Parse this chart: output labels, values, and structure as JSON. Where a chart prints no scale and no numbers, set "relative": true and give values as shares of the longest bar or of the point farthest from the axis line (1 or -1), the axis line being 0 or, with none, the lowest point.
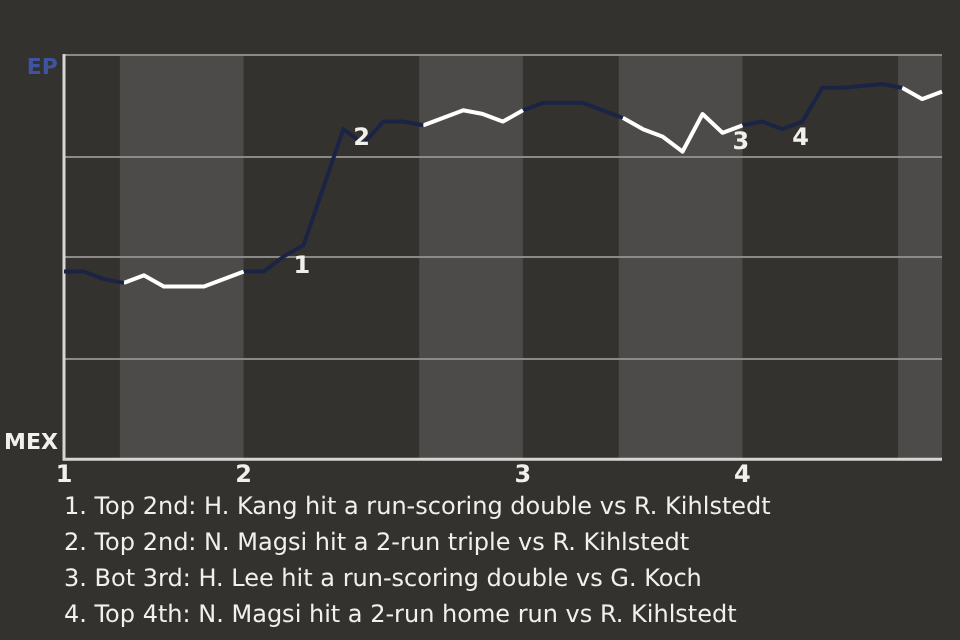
{
  "chart_data": {
    "type": "line",
    "relative": true,
    "categories": [
      "1",
      null,
      null,
      null,
      null,
      null,
      null,
      null,
      null,
      "2",
      null,
      null,
      null,
      null,
      null,
      null,
      null,
      null,
      null,
      null,
      null,
      null,
      null,
      "3",
      null,
      null,
      null,
      null,
      null,
      null,
      null,
      null,
      null,
      null,
      "4",
      null,
      null,
      null,
      null,
      null,
      null,
      null,
      null,
      null,
      null
    ],
    "series": [
      {
        "color": "#1b2444",
        "values": [
          0.5,
          0.5,
          0.48,
          0.47,
          null,
          null,
          null,
          null,
          null,
          null,
          null,
          null,
          null,
          null,
          null,
          null,
          null,
          null,
          null,
          null,
          null,
          null,
          null,
          null,
          null,
          null,
          null,
          null,
          null,
          null,
          null,
          null,
          null,
          null,
          null,
          null,
          null,
          null,
          null,
          null,
          null,
          null,
          null,
          null,
          null
        ]
      },
      {
        "color": "#ffffff",
        "values": [
          null,
          null,
          null,
          0.47,
          0.49,
          0.46,
          null,
          0.46,
          null,
          0.5,
          null,
          null,
          null,
          null,
          null,
          null,
          null,
          null,
          null,
          null,
          null,
          null,
          null,
          null,
          null,
          null,
          null,
          null,
          null,
          null,
          null,
          null,
          null,
          null,
          null,
          null,
          null,
          null,
          null,
          null,
          null,
          null,
          null,
          null,
          null
        ]
      },
      {
        "color": "#1b2444",
        "values": [
          null,
          null,
          null,
          null,
          null,
          null,
          null,
          null,
          null,
          0.5,
          0.5,
          0.54,
          0.57,
          null,
          0.88,
          0.84,
          0.9,
          0.9,
          0.89,
          null,
          null,
          null,
          null,
          null,
          null,
          null,
          null,
          null,
          null,
          null,
          null,
          null,
          null,
          null,
          null,
          null,
          null,
          null,
          null,
          null,
          null,
          null,
          null,
          null,
          null
        ]
      },
      {
        "color": "#ffffff",
        "values": [
          null,
          null,
          null,
          null,
          null,
          null,
          null,
          null,
          null,
          null,
          null,
          null,
          null,
          null,
          null,
          null,
          null,
          null,
          0.89,
          0.91,
          0.93,
          0.92,
          0.9,
          0.93,
          null,
          null,
          null,
          null,
          null,
          null,
          null,
          null,
          null,
          null,
          null,
          null,
          null,
          null,
          null,
          null,
          null,
          null,
          null,
          null,
          null
        ]
      },
      {
        "color": "#1b2444",
        "values": [
          null,
          null,
          null,
          null,
          null,
          null,
          null,
          null,
          null,
          null,
          null,
          null,
          null,
          null,
          null,
          null,
          null,
          null,
          null,
          null,
          null,
          null,
          null,
          0.93,
          0.95,
          null,
          0.95,
          null,
          0.91,
          null,
          null,
          null,
          null,
          null,
          null,
          null,
          null,
          null,
          null,
          null,
          null,
          null,
          null,
          null,
          null
        ]
      },
      {
        "color": "#ffffff",
        "values": [
          null,
          null,
          null,
          null,
          null,
          null,
          null,
          null,
          null,
          null,
          null,
          null,
          null,
          null,
          null,
          null,
          null,
          null,
          null,
          null,
          null,
          null,
          null,
          null,
          null,
          null,
          null,
          null,
          0.91,
          0.88,
          0.86,
          0.82,
          0.92,
          0.87,
          0.89,
          null,
          null,
          null,
          null,
          null,
          null,
          null,
          null,
          null,
          null
        ]
      },
      {
        "color": "#1b2444",
        "values": [
          null,
          null,
          null,
          null,
          null,
          null,
          null,
          null,
          null,
          null,
          null,
          null,
          null,
          null,
          null,
          null,
          null,
          null,
          null,
          null,
          null,
          null,
          null,
          null,
          null,
          null,
          null,
          null,
          null,
          null,
          null,
          null,
          null,
          null,
          0.89,
          0.9,
          0.88,
          0.9,
          0.99,
          0.99,
          null,
          1,
          0.99,
          null,
          null
        ]
      },
      {
        "color": "#ffffff",
        "values": [
          null,
          null,
          null,
          null,
          null,
          null,
          null,
          null,
          null,
          null,
          null,
          null,
          null,
          null,
          null,
          null,
          null,
          null,
          null,
          null,
          null,
          null,
          null,
          null,
          null,
          null,
          null,
          null,
          null,
          null,
          null,
          null,
          null,
          null,
          null,
          null,
          null,
          null,
          null,
          null,
          null,
          null,
          0.99,
          0.96,
          0.98
        ]
      }
    ],
    "grid": "y",
    "marker": "none",
    "annotations": [
      "EP",
      "MEX",
      {
        "text": "1",
        "y": 0.54
      },
      {
        "text": "2",
        "y": 0.88
      },
      {
        "text": "3",
        "y": 0.87
      },
      {
        "text": "4",
        "y": 0.88
      },
      "1. Top 2nd: H. Kang hit a run-scoring double vs R. Kihlstedt",
      "2. Top 2nd: N. Magsi hit a 2-run triple vs R. Kihlstedt",
      "3. Bot 3rd: H. Lee hit a run-scoring double vs G. Koch",
      "4. Top 4th: N. Magsi hit a 2-run home run vs R. Kihlstedt"
    ]
  }
}
